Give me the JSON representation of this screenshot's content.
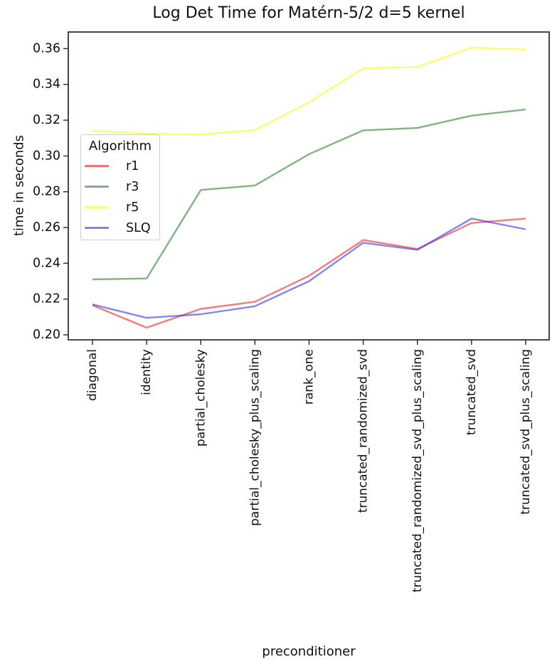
{
  "chart_data": {
    "type": "line",
    "title": "Log Det Time for Matérn-5/2 d=5 kernel",
    "xlabel": "preconditioner",
    "ylabel": "time in seconds",
    "categories": [
      "diagonal",
      "identity",
      "partial_cholesky",
      "partial_cholesky_plus_scaling",
      "rank_one",
      "truncated_randomized_svd",
      "truncated_randomized_svd_plus_scaling",
      "truncated_svd",
      "truncated_svd_plus_scaling"
    ],
    "series": [
      {
        "name": "r1",
        "color": "rgba(235,45,40,0.62)",
        "legend_color": "#f3736f",
        "values": [
          0.2165,
          0.204,
          0.2145,
          0.2185,
          0.233,
          0.253,
          0.248,
          0.2625,
          0.265
        ]
      },
      {
        "name": "r3",
        "color": "rgba(45,130,45,0.60)",
        "legend_color": "#81b181",
        "values": [
          0.231,
          0.2315,
          0.281,
          0.2835,
          0.301,
          0.3143,
          0.3157,
          0.3225,
          0.326
        ]
      },
      {
        "name": "r5",
        "color": "rgba(250,250,20,0.60)",
        "legend_color": "#fbfb75",
        "values": [
          0.314,
          0.3125,
          0.312,
          0.3145,
          0.33,
          0.349,
          0.3497,
          0.3605,
          0.3595
        ]
      },
      {
        "name": "SLQ",
        "color": "rgba(40,40,230,0.57)",
        "legend_color": "#8282ee",
        "values": [
          0.217,
          0.2095,
          0.2115,
          0.216,
          0.23,
          0.2515,
          0.2475,
          0.265,
          0.259
        ]
      }
    ],
    "yticks": [
      0.2,
      0.22,
      0.24,
      0.26,
      0.28,
      0.3,
      0.32,
      0.34,
      0.36
    ],
    "ylim": [
      0.1972,
      0.3693
    ],
    "grid": false,
    "legend": {
      "title": "Algorithm",
      "position": "upper left"
    },
    "spine_color": "#333333",
    "text_color": "#111111"
  }
}
